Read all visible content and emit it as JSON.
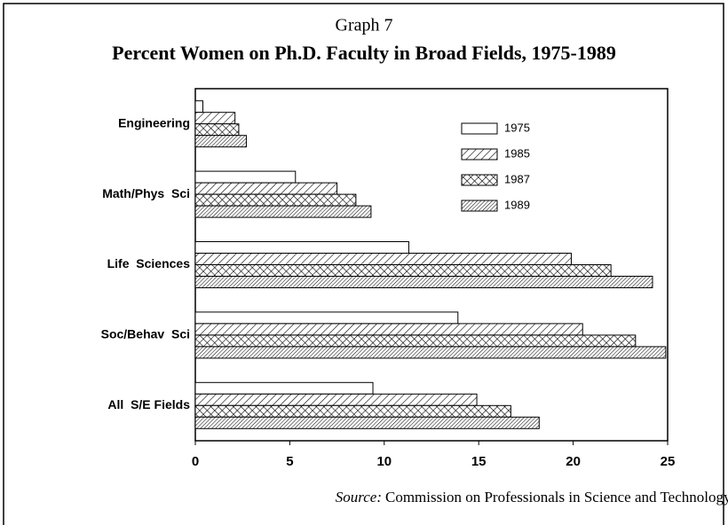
{
  "chart_data": {
    "type": "hbar",
    "title": "Graph 7",
    "subtitle": "Percent Women on Ph.D. Faculty in Broad Fields, 1975-1989",
    "source_label": "Source:",
    "source_text": "Commission on Professionals in Science and Technology.",
    "categories": [
      "Engineering",
      "Math/Phys  Sci",
      "Life  Sciences",
      "Soc/Behav  Sci",
      "All  S/E Fields"
    ],
    "series": [
      {
        "name": "1975",
        "color": "#000000",
        "pattern": "none",
        "values": [
          0.4,
          5.3,
          11.3,
          13.9,
          9.4
        ]
      },
      {
        "name": "1985",
        "color": "#000000",
        "pattern": "diagonal",
        "values": [
          2.1,
          7.5,
          19.9,
          20.5,
          14.9
        ]
      },
      {
        "name": "1987",
        "color": "#000000",
        "pattern": "crosshatch",
        "values": [
          2.3,
          8.5,
          22.0,
          23.3,
          16.7
        ]
      },
      {
        "name": "1989",
        "color": "#000000",
        "pattern": "dense-diagonal",
        "values": [
          2.7,
          9.3,
          24.2,
          24.9,
          18.2
        ]
      }
    ],
    "xlim": [
      0,
      25
    ],
    "xticks": [
      0,
      5,
      10,
      15,
      20,
      25
    ],
    "legend": "upper right"
  }
}
